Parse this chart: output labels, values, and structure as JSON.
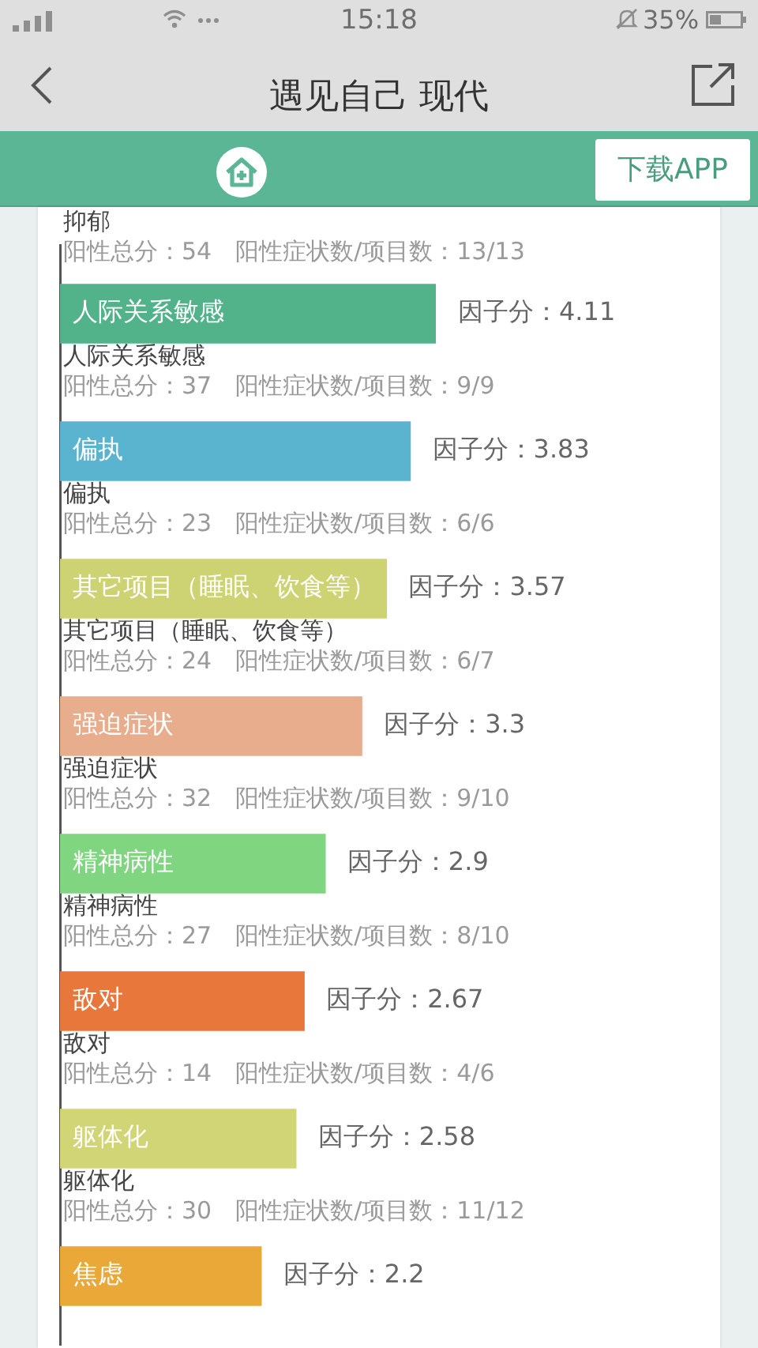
{
  "chart_data": {
    "type": "bar",
    "orientation": "horizontal",
    "title": "遇见自己 现代",
    "categories": [
      "人际关系敏感",
      "偏执",
      "其它项目（睡眠、饮食等）",
      "强迫症状",
      "精神病性",
      "敌对",
      "躯体化",
      "焦虑"
    ],
    "values": [
      4.11,
      3.83,
      3.57,
      3.3,
      2.9,
      2.67,
      2.58,
      2.2
    ],
    "colors": [
      "#52b38b",
      "#5ab4d0",
      "#cdd373",
      "#e8ad8d",
      "#80d680",
      "#e8773c",
      "#d1d576",
      "#e9a838"
    ],
    "value_labels": [
      "因子分：4.11",
      "因子分：3.83",
      "因子分：3.57",
      "因子分：3.3",
      "因子分：2.9",
      "因子分：2.67",
      "因子分：2.58",
      "因子分：2.2"
    ],
    "annotations": [
      "15:18",
      "35%",
      "下载APP",
      "抑郁",
      "阳性总分：54　阳性症状数/项目数：13/13",
      "人际关系敏感",
      "阳性总分：37　阳性症状数/项目数：9/9",
      "偏执",
      "阳性总分：23　阳性症状数/项目数：6/6",
      "其它项目（睡眠、饮食等）",
      "阳性总分：24　阳性症状数/项目数：6/7",
      "强迫症状",
      "阳性总分：32　阳性症状数/项目数：9/10",
      "精神病性",
      "阳性总分：27　阳性症状数/项目数：8/10",
      "敌对",
      "阳性总分：14　阳性症状数/项目数：4/6",
      "躯体化",
      "阳性总分：30　阳性症状数/项目数：11/12"
    ]
  }
}
